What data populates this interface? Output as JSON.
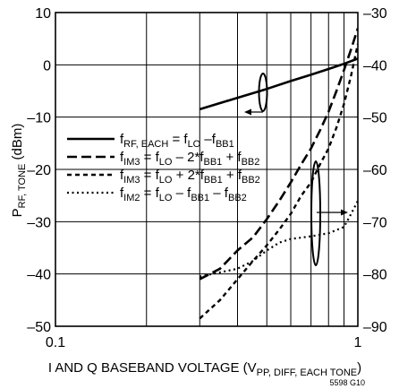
{
  "chart_data": {
    "type": "line",
    "xlabel": {
      "main": "I AND Q BASEBAND VOLTAGE (V",
      "sub": "PP, DIFF, EACH TONE",
      "end": ")"
    },
    "ylabel_left": {
      "main": "P",
      "sub": "RF, TONE",
      "end": " (dBm)"
    },
    "x_scale": "log",
    "xlim": [
      0.1,
      1
    ],
    "x_ticks": [
      {
        "value": 0.1,
        "label": "0.1"
      },
      {
        "value": 1,
        "label": "1"
      }
    ],
    "ylim_left": [
      -50,
      10
    ],
    "ylim_right": [
      -90,
      -30
    ],
    "y_ticks_left": [
      {
        "value": 10,
        "label": "10"
      },
      {
        "value": 0,
        "label": "0"
      },
      {
        "value": -10,
        "label": "–10"
      },
      {
        "value": -20,
        "label": "–20"
      },
      {
        "value": -30,
        "label": "–30"
      },
      {
        "value": -40,
        "label": "–40"
      },
      {
        "value": -50,
        "label": "–50"
      }
    ],
    "y_ticks_right": [
      {
        "value": -30,
        "label": "–30"
      },
      {
        "value": -40,
        "label": "–40"
      },
      {
        "value": -50,
        "label": "–50"
      },
      {
        "value": -60,
        "label": "–60"
      },
      {
        "value": -70,
        "label": "–70"
      },
      {
        "value": -80,
        "label": "–80"
      },
      {
        "value": -90,
        "label": "–90"
      }
    ],
    "grid": true,
    "legend_position": "left-middle",
    "series": [
      {
        "axis": "left",
        "style": "solid",
        "legend": [
          {
            "t": "f",
            "s": false
          },
          {
            "t": "RF, EACH",
            "s": true
          },
          {
            "t": " = f",
            "s": false
          },
          {
            "t": "LO",
            "s": true
          },
          {
            "t": " –f",
            "s": false
          },
          {
            "t": "BB1",
            "s": true
          }
        ],
        "points": [
          [
            0.3,
            -8.5
          ],
          [
            0.4,
            -6.3
          ],
          [
            0.5,
            -4.6
          ],
          [
            0.6,
            -3.1
          ],
          [
            0.7,
            -1.9
          ],
          [
            0.8,
            -0.8
          ],
          [
            0.9,
            0.2
          ],
          [
            1.0,
            1.2
          ]
        ]
      },
      {
        "axis": "right",
        "style": "dashed",
        "legend": [
          {
            "t": "f",
            "s": false
          },
          {
            "t": "IM3",
            "s": true
          },
          {
            "t": " = f",
            "s": false
          },
          {
            "t": "LO",
            "s": true
          },
          {
            "t": " – 2*f",
            "s": false
          },
          {
            "t": "BB1",
            "s": true
          },
          {
            "t": " + f",
            "s": false
          },
          {
            "t": "BB2",
            "s": true
          }
        ],
        "points": [
          [
            0.3,
            -81
          ],
          [
            0.35,
            -79
          ],
          [
            0.4,
            -75.5
          ],
          [
            0.45,
            -73
          ],
          [
            0.5,
            -69.5
          ],
          [
            0.55,
            -66
          ],
          [
            0.6,
            -62.5
          ],
          [
            0.65,
            -59
          ],
          [
            0.7,
            -56
          ],
          [
            0.75,
            -52.5
          ],
          [
            0.8,
            -49
          ],
          [
            0.85,
            -45
          ],
          [
            0.9,
            -41
          ],
          [
            0.95,
            -37
          ],
          [
            1.0,
            -33
          ]
        ]
      },
      {
        "axis": "right",
        "style": "short-dashed",
        "legend": [
          {
            "t": "f",
            "s": false
          },
          {
            "t": "IM3",
            "s": true
          },
          {
            "t": " = f",
            "s": false
          },
          {
            "t": "LO",
            "s": true
          },
          {
            "t": " + 2*f",
            "s": false
          },
          {
            "t": "BB1",
            "s": true
          },
          {
            "t": " + f",
            "s": false
          },
          {
            "t": "BB2",
            "s": true
          }
        ],
        "points": [
          [
            0.3,
            -88.5
          ],
          [
            0.35,
            -85
          ],
          [
            0.4,
            -81
          ],
          [
            0.45,
            -77.5
          ],
          [
            0.5,
            -74.5
          ],
          [
            0.55,
            -71.5
          ],
          [
            0.6,
            -68.5
          ],
          [
            0.65,
            -65
          ],
          [
            0.7,
            -62.5
          ],
          [
            0.75,
            -59
          ],
          [
            0.8,
            -56
          ],
          [
            0.85,
            -52
          ],
          [
            0.9,
            -47.5
          ],
          [
            0.95,
            -42
          ],
          [
            1.0,
            -36
          ]
        ]
      },
      {
        "axis": "right",
        "style": "dotted",
        "legend": [
          {
            "t": "f",
            "s": false
          },
          {
            "t": "IM2",
            "s": true
          },
          {
            "t": " = f",
            "s": false
          },
          {
            "t": "LO",
            "s": true
          },
          {
            "t": " – f",
            "s": false
          },
          {
            "t": "BB1",
            "s": true
          },
          {
            "t": " – f",
            "s": false
          },
          {
            "t": "BB2",
            "s": true
          }
        ],
        "points": [
          [
            0.3,
            -80.5
          ],
          [
            0.35,
            -79.7
          ],
          [
            0.4,
            -79
          ],
          [
            0.45,
            -77.5
          ],
          [
            0.5,
            -75.5
          ],
          [
            0.55,
            -74
          ],
          [
            0.6,
            -73.3
          ],
          [
            0.7,
            -72.8
          ],
          [
            0.8,
            -72.2
          ],
          [
            0.9,
            -71
          ],
          [
            0.95,
            -68.5
          ],
          [
            1.0,
            -66
          ]
        ]
      }
    ],
    "annotations": {
      "note": "5598 G10"
    }
  }
}
